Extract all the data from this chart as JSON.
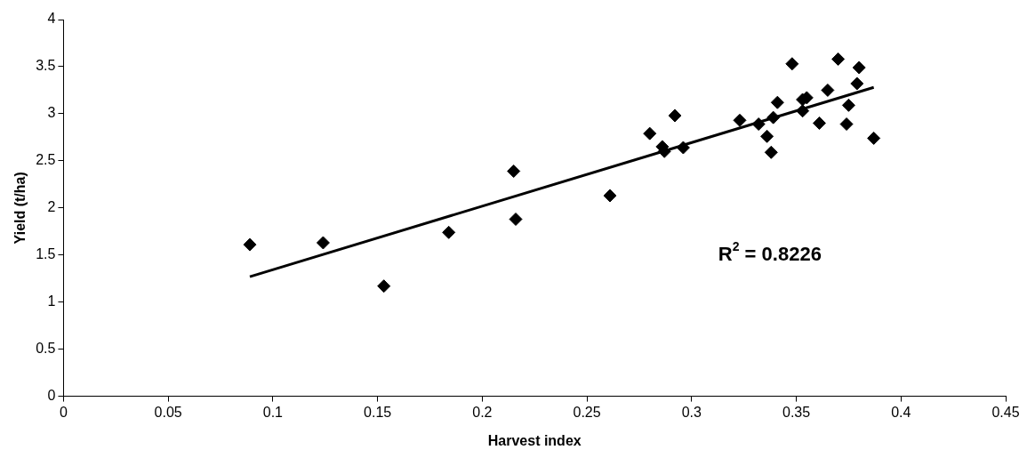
{
  "chart_data": {
    "type": "scatter",
    "xlabel": "Harvest index",
    "ylabel": "Yield (t/ha)",
    "xlim": [
      0,
      0.45
    ],
    "xticks": [
      0,
      0.05,
      0.1,
      0.15,
      0.2,
      0.25,
      0.3,
      0.35,
      0.4,
      0.45
    ],
    "ylim": [
      0,
      4
    ],
    "yticks": [
      0,
      0.5,
      1,
      1.5,
      2,
      2.5,
      3,
      3.5,
      4
    ],
    "grid": false,
    "legend": false,
    "marker": "diamond",
    "annotations": [
      "R$^{2}$ = 0.8226"
    ],
    "series": [
      {
        "color": "#000000",
        "x": [
          0.089,
          0.124,
          0.153,
          0.184,
          0.215,
          0.216,
          0.261,
          0.28,
          0.292,
          0.286,
          0.287,
          0.296,
          0.323,
          0.332,
          0.336,
          0.338,
          0.339,
          0.341,
          0.348,
          0.353,
          0.355,
          0.353,
          0.37,
          0.38,
          0.379,
          0.365,
          0.375,
          0.361,
          0.374,
          0.387
        ],
        "values": [
          1.61,
          1.63,
          1.17,
          1.74,
          2.39,
          1.88,
          2.13,
          2.79,
          2.98,
          2.65,
          2.6,
          2.64,
          2.93,
          2.89,
          2.76,
          2.59,
          2.96,
          3.12,
          3.53,
          3.15,
          3.17,
          3.03,
          3.58,
          3.49,
          3.32,
          3.25,
          3.09,
          2.9,
          2.89,
          2.74
        ]
      },
      {
        "type": "line",
        "marker": "none",
        "line_style": "solid",
        "color": "#000000",
        "x": [
          0.089,
          0.387
        ],
        "values": [
          1.27,
          3.28
        ]
      }
    ]
  }
}
